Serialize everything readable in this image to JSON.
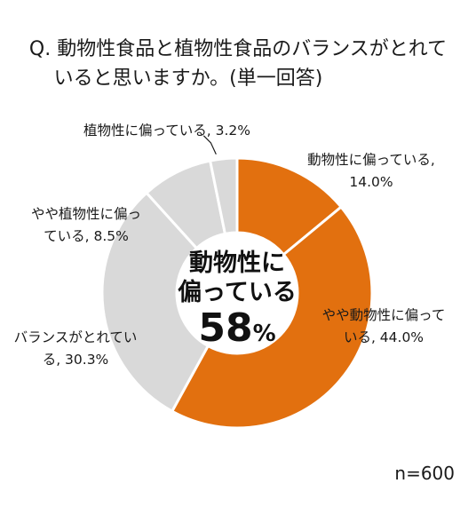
{
  "chart_data": {
    "type": "pie",
    "title_lines": [
      "Q. 動物性食品と植物性食品のバランスがとれて",
      "いると思いますか。(単一回答)"
    ],
    "slices": [
      {
        "label_lines": [
          "動物性に偏っている,",
          "14.0%"
        ],
        "value": 14.0,
        "color": "#E2700F"
      },
      {
        "label_lines": [
          "やや動物性に偏って",
          "いる, 44.0%"
        ],
        "value": 44.0,
        "color": "#E2700F"
      },
      {
        "label_lines": [
          "バランスがとれてい",
          "る, 30.3%"
        ],
        "value": 30.3,
        "color": "#D9D9D9"
      },
      {
        "label_lines": [
          "やや植物性に偏っ",
          "ている, 8.5%"
        ],
        "value": 8.5,
        "color": "#D9D9D9"
      },
      {
        "label_lines": [
          "植物性に偏っている, 3.2%"
        ],
        "value": 3.2,
        "color": "#D9D9D9"
      }
    ],
    "center": {
      "line1": "動物性に",
      "line2": "偏っている",
      "value": "58",
      "unit": "%"
    },
    "n_label": "n=600"
  }
}
